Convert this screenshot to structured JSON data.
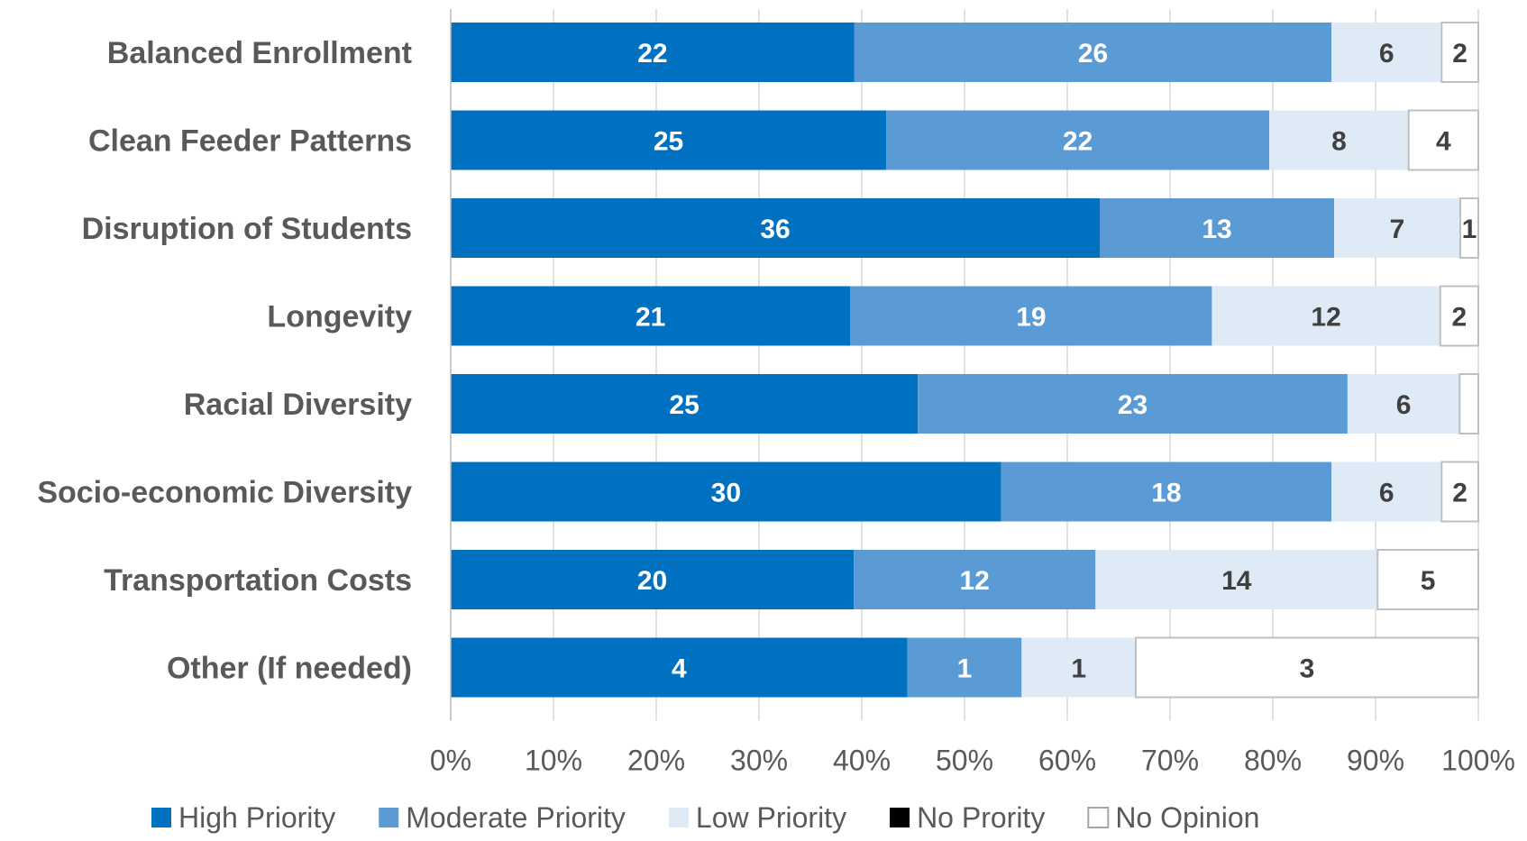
{
  "chart_data": {
    "type": "bar",
    "orientation": "horizontal",
    "stacked": "percent",
    "categories": [
      "Balanced Enrollment",
      "Clean Feeder Patterns",
      "Disruption of Students",
      "Longevity",
      "Racial Diversity",
      "Socio-economic Diversity",
      "Transportation Costs",
      "Other (If needed)"
    ],
    "series": [
      {
        "name": "High Priority",
        "color": "#0070C0",
        "label_color": "#ffffff",
        "values": [
          22,
          25,
          36,
          21,
          25,
          30,
          20,
          4
        ]
      },
      {
        "name": "Moderate Priority",
        "color": "#5B9BD5",
        "label_color": "#ffffff",
        "values": [
          26,
          22,
          13,
          19,
          23,
          18,
          12,
          1
        ]
      },
      {
        "name": "Low Priority",
        "color": "#DEEBF7",
        "label_color": "#404040",
        "values": [
          6,
          8,
          7,
          12,
          6,
          6,
          14,
          1
        ]
      },
      {
        "name": "No Prority",
        "color": "#000000",
        "label_color": "#ffffff",
        "values": [
          0,
          0,
          0,
          0,
          0,
          0,
          0,
          0
        ]
      },
      {
        "name": "No Opinion",
        "color": "#ffffff",
        "label_color": "#404040",
        "values": [
          2,
          4,
          1,
          2,
          1,
          2,
          5,
          3
        ]
      }
    ],
    "value_labels": [
      [
        "22",
        "26",
        "6",
        "",
        "2"
      ],
      [
        "25",
        "22",
        "8",
        "",
        "4"
      ],
      [
        "36",
        "13",
        "7",
        "",
        "1"
      ],
      [
        "21",
        "19",
        "12",
        "",
        "2"
      ],
      [
        "25",
        "23",
        "6",
        "",
        ""
      ],
      [
        "30",
        "18",
        "6",
        "",
        "2"
      ],
      [
        "20",
        "12",
        "14",
        "",
        "5"
      ],
      [
        "4",
        "1",
        "1",
        "",
        "3"
      ]
    ],
    "xlim": [
      0,
      100
    ],
    "xticks": [
      0,
      10,
      20,
      30,
      40,
      50,
      60,
      70,
      80,
      90,
      100
    ],
    "xtick_labels": [
      "0%",
      "10%",
      "20%",
      "30%",
      "40%",
      "50%",
      "60%",
      "70%",
      "80%",
      "90%",
      "100%"
    ],
    "grid": true,
    "legend_position": "bottom",
    "title": "",
    "xlabel": "",
    "ylabel": ""
  }
}
